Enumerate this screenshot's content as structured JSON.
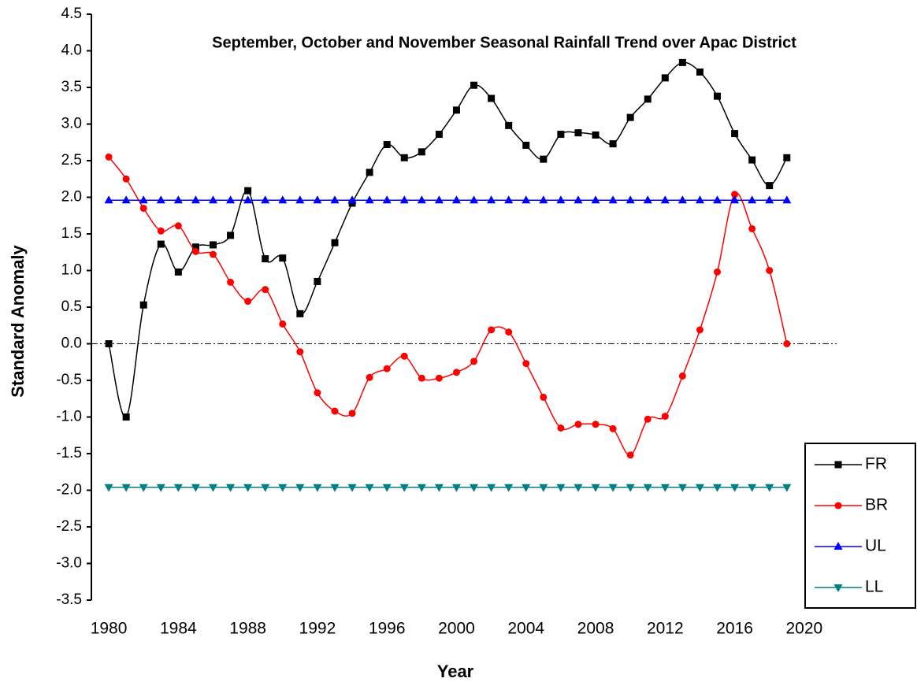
{
  "chart_data": {
    "type": "line",
    "title": "September, October and November Seasonal Rainfall Trend over Apac District",
    "x_label": "Year",
    "y_label": "Standard Anomaly",
    "x": [
      1980,
      1981,
      1982,
      1983,
      1984,
      1985,
      1986,
      1987,
      1988,
      1989,
      1990,
      1991,
      1992,
      1993,
      1994,
      1995,
      1996,
      1997,
      1998,
      1999,
      2000,
      2001,
      2002,
      2003,
      2004,
      2005,
      2006,
      2007,
      2008,
      2009,
      2010,
      2011,
      2012,
      2013,
      2014,
      2015,
      2016,
      2017,
      2018,
      2019
    ],
    "series": [
      {
        "name": "FR",
        "color": "#000000",
        "marker": "square",
        "smooth": true,
        "values": [
          0.0,
          -1.0,
          0.53,
          1.36,
          0.98,
          1.32,
          1.35,
          1.48,
          2.09,
          1.16,
          1.17,
          0.41,
          0.85,
          1.38,
          1.92,
          2.34,
          2.72,
          2.54,
          2.62,
          2.86,
          3.19,
          3.53,
          3.35,
          2.98,
          2.71,
          2.52,
          2.86,
          2.88,
          2.85,
          2.73,
          3.09,
          3.34,
          3.63,
          3.84,
          3.71,
          3.38,
          2.87,
          2.51,
          2.16,
          2.54
        ]
      },
      {
        "name": "BR",
        "color": "#ff0000",
        "marker": "circle",
        "smooth": true,
        "values": [
          2.55,
          2.25,
          1.85,
          1.54,
          1.61,
          1.26,
          1.22,
          0.84,
          0.58,
          0.74,
          0.27,
          -0.11,
          -0.67,
          -0.92,
          -0.95,
          -0.46,
          -0.34,
          -0.17,
          -0.47,
          -0.47,
          -0.39,
          -0.24,
          0.19,
          0.16,
          -0.27,
          -0.73,
          -1.15,
          -1.1,
          -1.1,
          -1.16,
          -1.52,
          -1.03,
          -0.99,
          -0.44,
          0.19,
          0.98,
          2.04,
          1.57,
          1.0,
          0.0
        ]
      },
      {
        "name": "UL",
        "color": "#0000ff",
        "marker": "triangle-up",
        "smooth": false,
        "values": [
          1.96,
          1.96,
          1.96,
          1.96,
          1.96,
          1.96,
          1.96,
          1.96,
          1.96,
          1.96,
          1.96,
          1.96,
          1.96,
          1.96,
          1.96,
          1.96,
          1.96,
          1.96,
          1.96,
          1.96,
          1.96,
          1.96,
          1.96,
          1.96,
          1.96,
          1.96,
          1.96,
          1.96,
          1.96,
          1.96,
          1.96,
          1.96,
          1.96,
          1.96,
          1.96,
          1.96,
          1.96,
          1.96,
          1.96,
          1.96
        ]
      },
      {
        "name": "LL",
        "color": "#008080",
        "marker": "triangle-down",
        "smooth": false,
        "values": [
          -1.96,
          -1.96,
          -1.96,
          -1.96,
          -1.96,
          -1.96,
          -1.96,
          -1.96,
          -1.96,
          -1.96,
          -1.96,
          -1.96,
          -1.96,
          -1.96,
          -1.96,
          -1.96,
          -1.96,
          -1.96,
          -1.96,
          -1.96,
          -1.96,
          -1.96,
          -1.96,
          -1.96,
          -1.96,
          -1.96,
          -1.96,
          -1.96,
          -1.96,
          -1.96,
          -1.96,
          -1.96,
          -1.96,
          -1.96,
          -1.96,
          -1.96,
          -1.96,
          -1.96,
          -1.96,
          -1.96
        ]
      }
    ],
    "xlim": [
      1979,
      2022
    ],
    "xticks": [
      1980,
      1984,
      1988,
      1992,
      1996,
      2000,
      2004,
      2008,
      2012,
      2016,
      2020
    ],
    "ylim": [
      -3.5,
      4.5
    ],
    "yticks": [
      4.5,
      {
        "value": 4,
        "label": "4.0"
      },
      3.5,
      {
        "value": 3,
        "label": "3.0"
      },
      2.5,
      {
        "value": 2,
        "label": "2.0"
      },
      1.5,
      {
        "value": 1,
        "label": "1.0"
      },
      0.5,
      {
        "value": 0,
        "label": "0.0"
      },
      -0.5,
      {
        "value": -1,
        "label": "-1.0"
      },
      -1.5,
      {
        "value": -2,
        "label": "-2.0"
      },
      -2.5,
      {
        "value": -3,
        "label": "-3.0"
      },
      -3.5
    ],
    "zero_line": true,
    "grid": false,
    "legend": "lower right"
  }
}
